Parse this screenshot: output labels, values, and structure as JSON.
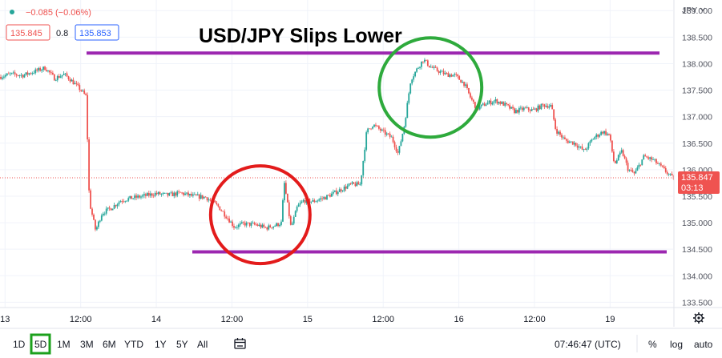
{
  "header": {
    "change_text": "−0.085 (−0.06%)",
    "bid_price": "135.845",
    "spread": "0.8",
    "ask_price": "135.853",
    "currency_menu": "JPY"
  },
  "toolbar": {
    "ranges": [
      "1D",
      "5D",
      "1M",
      "3M",
      "6M",
      "YTD",
      "1Y",
      "5Y",
      "All"
    ],
    "active_range": "5D",
    "clock": "07:46:47 (UTC)",
    "percent_label": "%",
    "log_label": "log",
    "auto_label": "auto"
  },
  "price_badge": {
    "price": "135.847",
    "countdown": "03:13"
  },
  "colors": {
    "up": "#26a69a",
    "down": "#ef5350",
    "resistance_line": "#9c27b0",
    "support_line": "#9c27b0",
    "red_circle": "#e31b1b",
    "green_circle": "#2eaa3c",
    "badge": "#ef5350"
  },
  "chart_data": {
    "type": "candlestick",
    "title": "USD/JPY Slips Lower",
    "ylim": [
      133.4,
      139.2
    ],
    "y_ticks": [
      139.0,
      138.5,
      138.0,
      137.5,
      137.0,
      136.5,
      136.0,
      135.5,
      135.0,
      134.5,
      134.0,
      133.5
    ],
    "y_tick_labels": [
      "139.000",
      "138.500",
      "138.000",
      "137.500",
      "137.000",
      "136.500",
      "136.000",
      "135.500",
      "135.000",
      "134.500",
      "134.000",
      "133.500"
    ],
    "x_tick_labels": [
      {
        "label": "13",
        "t": 0
      },
      {
        "label": "12:00",
        "t": 12
      },
      {
        "label": "14",
        "t": 24
      },
      {
        "label": "12:00",
        "t": 36
      },
      {
        "label": "15",
        "t": 48
      },
      {
        "label": "12:00",
        "t": 60
      },
      {
        "label": "16",
        "t": 72
      },
      {
        "label": "12:00",
        "t": 84
      },
      {
        "label": "19",
        "t": 96
      }
    ],
    "x_range_hours": [
      -0.8,
      106
    ],
    "last_price": 135.847,
    "price_path": [
      [
        -0.8,
        137.75
      ],
      [
        1,
        137.8
      ],
      [
        3,
        137.78
      ],
      [
        5,
        137.86
      ],
      [
        6.5,
        137.92
      ],
      [
        8,
        137.72
      ],
      [
        9.5,
        137.8
      ],
      [
        10.5,
        137.7
      ],
      [
        12,
        137.52
      ],
      [
        13,
        137.38
      ],
      [
        13.5,
        135.4
      ],
      [
        14.5,
        134.85
      ],
      [
        15.5,
        135.18
      ],
      [
        17,
        135.28
      ],
      [
        18.5,
        135.42
      ],
      [
        20,
        135.46
      ],
      [
        22,
        135.5
      ],
      [
        24,
        135.55
      ],
      [
        26,
        135.52
      ],
      [
        28,
        135.56
      ],
      [
        30,
        135.5
      ],
      [
        32,
        135.48
      ],
      [
        34,
        135.3
      ],
      [
        35.5,
        135.08
      ],
      [
        36.5,
        134.92
      ],
      [
        38,
        134.98
      ],
      [
        40,
        134.96
      ],
      [
        41.5,
        134.9
      ],
      [
        43,
        134.95
      ],
      [
        44,
        135.0
      ],
      [
        44.4,
        135.78
      ],
      [
        45,
        135.3
      ],
      [
        45.5,
        134.9
      ],
      [
        46.5,
        135.3
      ],
      [
        47.5,
        135.42
      ],
      [
        49,
        135.4
      ],
      [
        51,
        135.48
      ],
      [
        53,
        135.6
      ],
      [
        55,
        135.72
      ],
      [
        56.5,
        135.72
      ],
      [
        57.5,
        136.72
      ],
      [
        58.5,
        136.85
      ],
      [
        60,
        136.72
      ],
      [
        61.5,
        136.6
      ],
      [
        62.5,
        136.3
      ],
      [
        63.5,
        136.85
      ],
      [
        64.5,
        137.7
      ],
      [
        65.5,
        137.9
      ],
      [
        66.5,
        138.08
      ],
      [
        67.5,
        137.95
      ],
      [
        68.5,
        137.88
      ],
      [
        70,
        137.8
      ],
      [
        71.5,
        137.78
      ],
      [
        73,
        137.62
      ],
      [
        74,
        137.35
      ],
      [
        75,
        137.15
      ],
      [
        76.5,
        137.25
      ],
      [
        78,
        137.3
      ],
      [
        79.5,
        137.22
      ],
      [
        81,
        137.1
      ],
      [
        82.5,
        137.15
      ],
      [
        84,
        137.12
      ],
      [
        85.5,
        137.22
      ],
      [
        86.8,
        137.2
      ],
      [
        87.5,
        136.75
      ],
      [
        89,
        136.55
      ],
      [
        90.5,
        136.5
      ],
      [
        92,
        136.35
      ],
      [
        93.5,
        136.6
      ],
      [
        95,
        136.72
      ],
      [
        96,
        136.65
      ],
      [
        96.8,
        136.1
      ],
      [
        98,
        136.35
      ],
      [
        99,
        136.0
      ],
      [
        100,
        135.92
      ],
      [
        101.5,
        136.25
      ],
      [
        103,
        136.18
      ],
      [
        104.5,
        136.02
      ],
      [
        106,
        135.847
      ]
    ]
  },
  "annotations": {
    "resistance_level": 138.2,
    "support_level": 134.45,
    "red_circle_center": [
      40.5,
      135.15
    ],
    "green_circle_center": [
      67.5,
      137.55
    ]
  }
}
